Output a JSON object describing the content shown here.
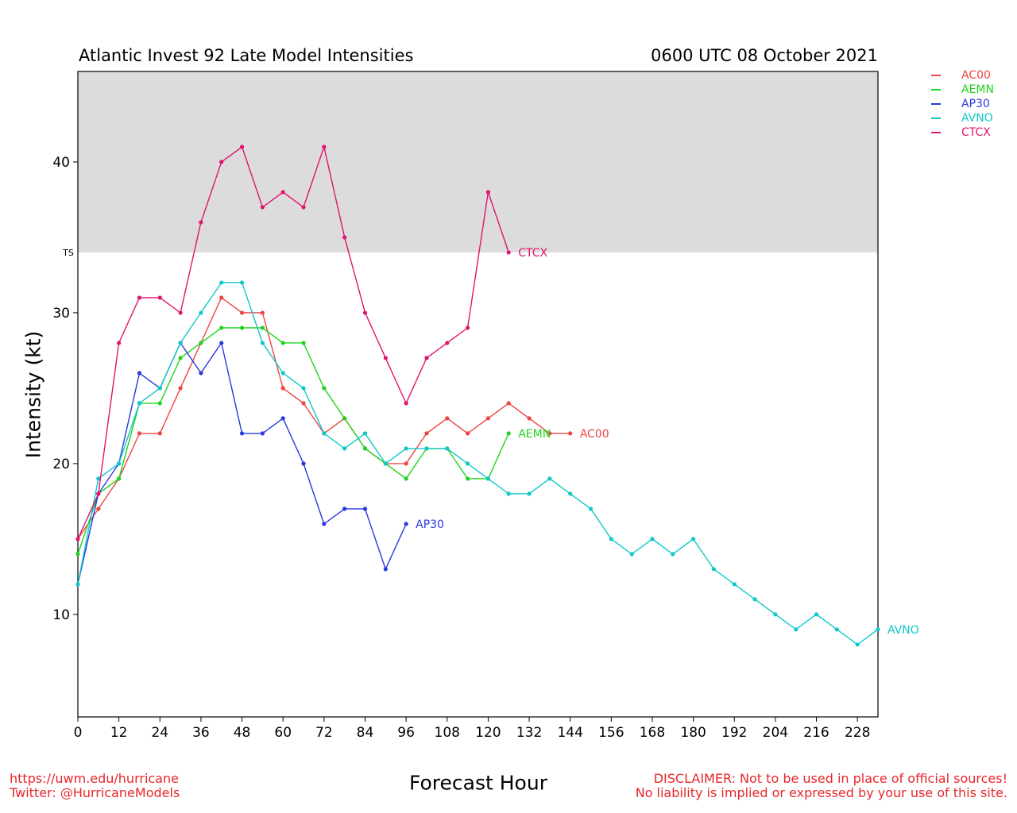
{
  "header": {
    "title": "Atlantic Invest 92 Late Model Intensities",
    "date": "0600 UTC 08 October 2021"
  },
  "footer": {
    "left_line1": "https://uwm.edu/hurricane",
    "left_line2": "Twitter: @HurricaneModels",
    "right_line1": "DISCLAIMER: Not to be used in place of official sources!",
    "right_line2": "No liability is implied or expressed by your use of this site."
  },
  "chart_data": {
    "type": "line",
    "xlabel": "Forecast Hour",
    "ylabel": "Intensity (kt)",
    "xlim": [
      0,
      234
    ],
    "ylim": [
      3.2,
      46
    ],
    "xticks": [
      0,
      12,
      24,
      36,
      48,
      60,
      72,
      84,
      96,
      108,
      120,
      132,
      144,
      156,
      168,
      180,
      192,
      204,
      216,
      228
    ],
    "yticks": [
      10,
      20,
      30,
      40
    ],
    "threshold_band": {
      "label": "TS",
      "from": 34,
      "to": 46,
      "color": "#dcdcdc"
    },
    "grid": false,
    "legend_position": "outside-right-top",
    "series": [
      {
        "name": "AC00",
        "color": "#f04444",
        "x": [
          0,
          6,
          12,
          18,
          24,
          30,
          36,
          42,
          48,
          54,
          60,
          66,
          72,
          78,
          84,
          90,
          96,
          102,
          108,
          114,
          120,
          126,
          132,
          138,
          144
        ],
        "values": [
          15,
          17,
          19,
          22,
          22,
          25,
          28,
          31,
          30,
          30,
          25,
          24,
          22,
          23,
          21,
          20,
          20,
          22,
          23,
          22,
          23,
          24,
          23,
          22,
          22
        ]
      },
      {
        "name": "AEMN",
        "color": "#1ed41e",
        "x": [
          0,
          6,
          12,
          18,
          24,
          30,
          36,
          42,
          48,
          54,
          60,
          66,
          72,
          78,
          84,
          90,
          96,
          102,
          108,
          114,
          120,
          126
        ],
        "values": [
          14,
          18,
          19,
          24,
          24,
          27,
          28,
          29,
          29,
          29,
          28,
          28,
          25,
          23,
          21,
          20,
          19,
          21,
          21,
          19,
          19,
          22
        ]
      },
      {
        "name": "AP30",
        "color": "#2a38e0",
        "x": [
          0,
          6,
          12,
          18,
          24,
          30,
          36,
          42,
          48,
          54,
          60,
          66,
          72,
          78,
          84,
          90,
          96
        ],
        "values": [
          12,
          18,
          20,
          26,
          25,
          28,
          26,
          28,
          22,
          22,
          23,
          20,
          16,
          17,
          17,
          13,
          16
        ]
      },
      {
        "name": "AVNO",
        "color": "#10c8c8",
        "x": [
          0,
          6,
          12,
          18,
          24,
          30,
          36,
          42,
          48,
          54,
          60,
          66,
          72,
          78,
          84,
          90,
          96,
          102,
          108,
          114,
          120,
          126,
          132,
          138,
          144,
          150,
          156,
          162,
          168,
          174,
          180,
          186,
          192,
          198,
          204,
          210,
          216,
          222,
          228,
          234
        ],
        "values": [
          12,
          19,
          20,
          24,
          25,
          28,
          30,
          32,
          32,
          28,
          26,
          25,
          22,
          21,
          22,
          20,
          21,
          21,
          21,
          20,
          19,
          18,
          18,
          19,
          18,
          17,
          15,
          14,
          15,
          14,
          15,
          13,
          12,
          11,
          10,
          9,
          10,
          9,
          8,
          9
        ]
      },
      {
        "name": "CTCX",
        "color": "#e0146e",
        "x": [
          0,
          6,
          12,
          18,
          24,
          30,
          36,
          42,
          48,
          54,
          60,
          66,
          72,
          78,
          84,
          90,
          96,
          102,
          108,
          114,
          120,
          126
        ],
        "values": [
          15,
          18,
          28,
          31,
          31,
          30,
          36,
          40,
          41,
          37,
          38,
          37,
          41,
          35,
          30,
          27,
          24,
          27,
          28,
          29,
          38,
          34
        ]
      }
    ]
  }
}
